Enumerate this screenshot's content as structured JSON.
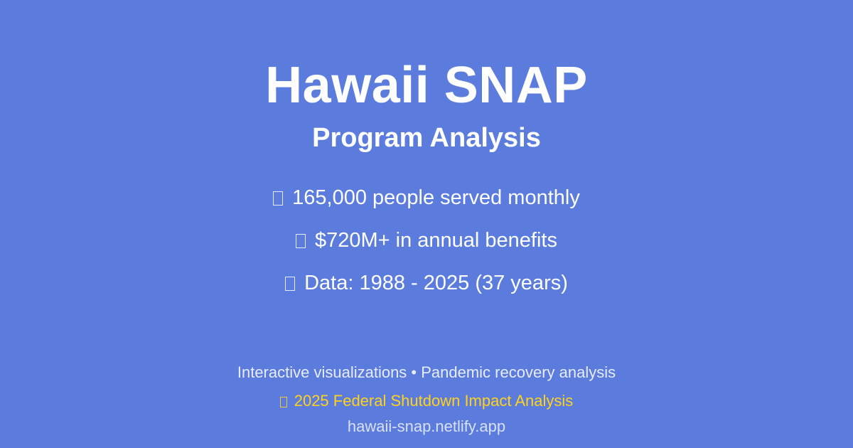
{
  "title": "Hawaii SNAP",
  "subtitle": "Program Analysis",
  "stats": [
    {
      "icon": "people-icon",
      "text": "165,000 people served monthly"
    },
    {
      "icon": "money-icon",
      "text": "$720M+ in annual benefits"
    },
    {
      "icon": "chart-icon",
      "text": "Data: 1988 - 2025 (37 years)"
    }
  ],
  "footer": {
    "features": "Interactive visualizations • Pandemic recovery analysis",
    "shutdown": {
      "icon": "alert-icon",
      "text": "2025 Federal Shutdown Impact Analysis"
    },
    "site": "hawaii-snap.netlify.app"
  },
  "colors": {
    "background": "#5b7cdc",
    "text": "#ffffff",
    "highlight": "#ffd21f"
  }
}
